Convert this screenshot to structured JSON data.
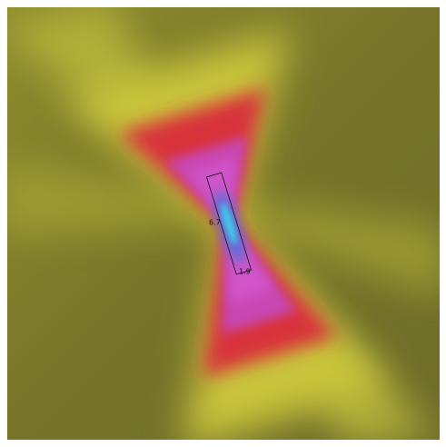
{
  "labels": {
    "length": "6.7",
    "width": "1.9"
  }
}
